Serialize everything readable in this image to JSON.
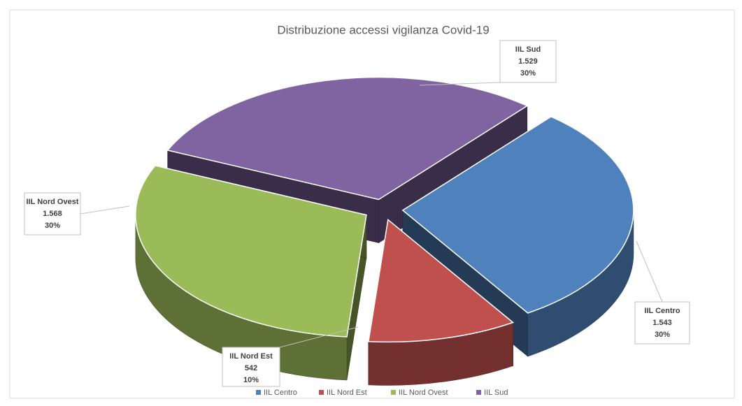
{
  "chart_data": {
    "type": "pie3d",
    "title": "Distribuzione accessi vigilanza Covid-19",
    "categories": [
      "IIL Centro",
      "IIL Nord Est",
      "IIL Nord Ovest",
      "IIL Sud"
    ],
    "values": [
      1543,
      542,
      1568,
      1529
    ],
    "value_labels": [
      "1.543",
      "542",
      "1.568",
      "1.529"
    ],
    "percent_values": [
      30,
      10,
      30,
      30
    ],
    "percent_labels": [
      "30%",
      "10%",
      "30%",
      "30%"
    ],
    "colors": [
      "#4f81bd",
      "#c0504d",
      "#9bbb59",
      "#8064a2"
    ],
    "legend": "bottom"
  }
}
